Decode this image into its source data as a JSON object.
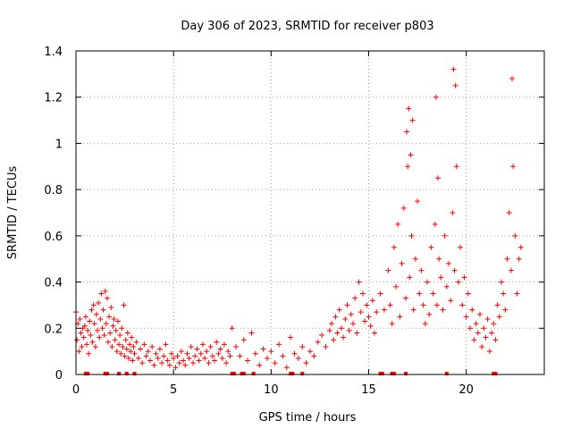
{
  "chart_data": {
    "type": "scatter",
    "title": "Day 306 of 2023, SRMTID for receiver p803",
    "xlabel": "GPS time / hours",
    "ylabel": "SRMTID / TECUs",
    "xlim": [
      0,
      24
    ],
    "ylim": [
      0,
      1.4
    ],
    "xticks": [
      0,
      5,
      10,
      15,
      20
    ],
    "yticks": [
      0,
      0.2,
      0.4,
      0.6,
      0.8,
      1,
      1.2,
      1.4
    ],
    "ytick_labels": [
      "0",
      "0.2",
      "0.4",
      "0.6",
      "0.8",
      "1",
      "1.2",
      "1.4"
    ],
    "grid": true,
    "marker": "+",
    "marker_color": "#ff0000",
    "series": [
      {
        "name": "SRMTID",
        "x": [
          0.0,
          0.05,
          0.1,
          0.15,
          0.2,
          0.25,
          0.3,
          0.35,
          0.4,
          0.45,
          0.5,
          0.55,
          0.6,
          0.65,
          0.7,
          0.75,
          0.8,
          0.85,
          0.9,
          0.95,
          1.0,
          1.05,
          1.1,
          1.15,
          1.2,
          1.25,
          1.3,
          1.35,
          1.4,
          1.45,
          1.5,
          1.55,
          1.6,
          1.65,
          1.7,
          1.75,
          1.8,
          1.85,
          1.9,
          1.95,
          2.0,
          2.05,
          2.1,
          2.15,
          2.2,
          2.25,
          2.3,
          2.35,
          2.4,
          2.45,
          2.5,
          2.55,
          2.6,
          2.65,
          2.7,
          2.75,
          2.8,
          2.85,
          2.9,
          2.95,
          3.0,
          3.1,
          3.2,
          3.3,
          3.4,
          3.5,
          3.6,
          3.7,
          3.8,
          3.9,
          4.0,
          4.1,
          4.2,
          4.3,
          4.4,
          4.5,
          4.6,
          4.7,
          4.8,
          4.9,
          5.0,
          5.1,
          5.2,
          5.3,
          5.4,
          5.5,
          5.6,
          5.7,
          5.8,
          5.9,
          6.0,
          6.1,
          6.2,
          6.3,
          6.4,
          6.5,
          6.6,
          6.7,
          6.8,
          6.9,
          7.0,
          7.1,
          7.2,
          7.3,
          7.4,
          7.5,
          7.6,
          7.7,
          7.8,
          7.9,
          8.0,
          8.2,
          8.4,
          8.6,
          8.8,
          9.0,
          9.2,
          9.4,
          9.6,
          9.8,
          10.0,
          10.2,
          10.4,
          10.6,
          10.8,
          11.0,
          11.2,
          11.4,
          11.6,
          11.8,
          12.0,
          12.2,
          12.4,
          12.6,
          12.8,
          13.0,
          13.1,
          13.2,
          13.3,
          13.4,
          13.5,
          13.6,
          13.7,
          13.8,
          13.9,
          14.0,
          14.1,
          14.2,
          14.3,
          14.4,
          14.5,
          14.6,
          14.7,
          14.8,
          14.9,
          15.0,
          15.1,
          15.2,
          15.3,
          15.4,
          15.6,
          15.8,
          16.0,
          16.1,
          16.2,
          16.3,
          16.4,
          16.5,
          16.6,
          16.7,
          16.8,
          16.9,
          17.0,
          17.1,
          17.2,
          17.3,
          17.4,
          17.5,
          17.6,
          17.7,
          17.8,
          17.9,
          18.0,
          18.1,
          18.2,
          18.3,
          18.4,
          18.5,
          18.6,
          18.7,
          18.8,
          18.9,
          19.0,
          19.1,
          19.2,
          19.3,
          19.4,
          19.5,
          19.6,
          19.7,
          19.8,
          19.9,
          20.0,
          20.1,
          20.2,
          20.3,
          20.4,
          20.5,
          20.6,
          20.7,
          20.8,
          20.9,
          21.0,
          21.1,
          21.2,
          21.3,
          21.4,
          21.5,
          21.6,
          21.7,
          21.8,
          21.9,
          22.0,
          22.1,
          22.2,
          22.3,
          22.4,
          22.5,
          22.6,
          22.7,
          22.8,
          16.95,
          17.05,
          17.15,
          17.25,
          18.45,
          18.55,
          19.35,
          19.45,
          22.35
        ],
        "values": [
          0.27,
          0.15,
          0.22,
          0.1,
          0.24,
          0.18,
          0.12,
          0.2,
          0.16,
          0.21,
          0.25,
          0.13,
          0.19,
          0.09,
          0.23,
          0.17,
          0.28,
          0.14,
          0.3,
          0.22,
          0.12,
          0.26,
          0.19,
          0.31,
          0.16,
          0.24,
          0.35,
          0.2,
          0.28,
          0.17,
          0.36,
          0.22,
          0.33,
          0.14,
          0.25,
          0.18,
          0.29,
          0.12,
          0.21,
          0.24,
          0.15,
          0.19,
          0.1,
          0.23,
          0.13,
          0.17,
          0.09,
          0.2,
          0.12,
          0.3,
          0.08,
          0.15,
          0.11,
          0.18,
          0.07,
          0.13,
          0.1,
          0.16,
          0.06,
          0.12,
          0.09,
          0.14,
          0.07,
          0.11,
          0.05,
          0.13,
          0.08,
          0.1,
          0.06,
          0.12,
          0.04,
          0.09,
          0.07,
          0.11,
          0.05,
          0.08,
          0.13,
          0.06,
          0.04,
          0.09,
          0.07,
          0.03,
          0.08,
          0.05,
          0.1,
          0.06,
          0.04,
          0.09,
          0.07,
          0.12,
          0.05,
          0.08,
          0.11,
          0.06,
          0.09,
          0.13,
          0.07,
          0.1,
          0.05,
          0.12,
          0.08,
          0.06,
          0.14,
          0.09,
          0.11,
          0.07,
          0.13,
          0.05,
          0.1,
          0.08,
          0.2,
          0.12,
          0.08,
          0.15,
          0.06,
          0.18,
          0.09,
          0.04,
          0.11,
          0.07,
          0.1,
          0.05,
          0.13,
          0.08,
          0.03,
          0.16,
          0.09,
          0.07,
          0.12,
          0.05,
          0.1,
          0.08,
          0.14,
          0.17,
          0.12,
          0.19,
          0.22,
          0.15,
          0.25,
          0.18,
          0.28,
          0.2,
          0.16,
          0.24,
          0.3,
          0.19,
          0.26,
          0.22,
          0.33,
          0.18,
          0.4,
          0.27,
          0.35,
          0.23,
          0.3,
          0.25,
          0.21,
          0.32,
          0.18,
          0.27,
          0.35,
          0.28,
          0.45,
          0.3,
          0.22,
          0.55,
          0.38,
          0.65,
          0.25,
          0.48,
          0.72,
          0.33,
          0.9,
          0.42,
          0.6,
          0.28,
          0.5,
          0.75,
          0.35,
          0.45,
          0.3,
          0.22,
          0.4,
          0.26,
          0.55,
          0.35,
          0.65,
          0.3,
          0.5,
          0.42,
          0.28,
          0.6,
          0.38,
          0.48,
          0.32,
          0.7,
          0.45,
          0.9,
          0.4,
          0.55,
          0.3,
          0.42,
          0.25,
          0.35,
          0.2,
          0.28,
          0.15,
          0.22,
          0.18,
          0.26,
          0.12,
          0.2,
          0.16,
          0.24,
          0.1,
          0.18,
          0.22,
          0.15,
          0.3,
          0.25,
          0.4,
          0.35,
          0.28,
          0.5,
          0.7,
          0.45,
          0.9,
          0.6,
          0.35,
          0.5,
          0.55,
          1.05,
          1.15,
          0.95,
          1.1,
          1.2,
          0.85,
          1.32,
          1.25,
          1.28
        ]
      }
    ],
    "axis_markers_x": [
      0.5,
      0.6,
      1.5,
      1.6,
      2.2,
      2.6,
      3.0,
      8.0,
      8.1,
      8.5,
      8.6,
      9.1,
      11.0,
      11.1,
      11.6,
      15.6,
      15.7,
      16.2,
      16.3,
      16.9,
      19.0,
      21.4,
      21.5
    ]
  }
}
